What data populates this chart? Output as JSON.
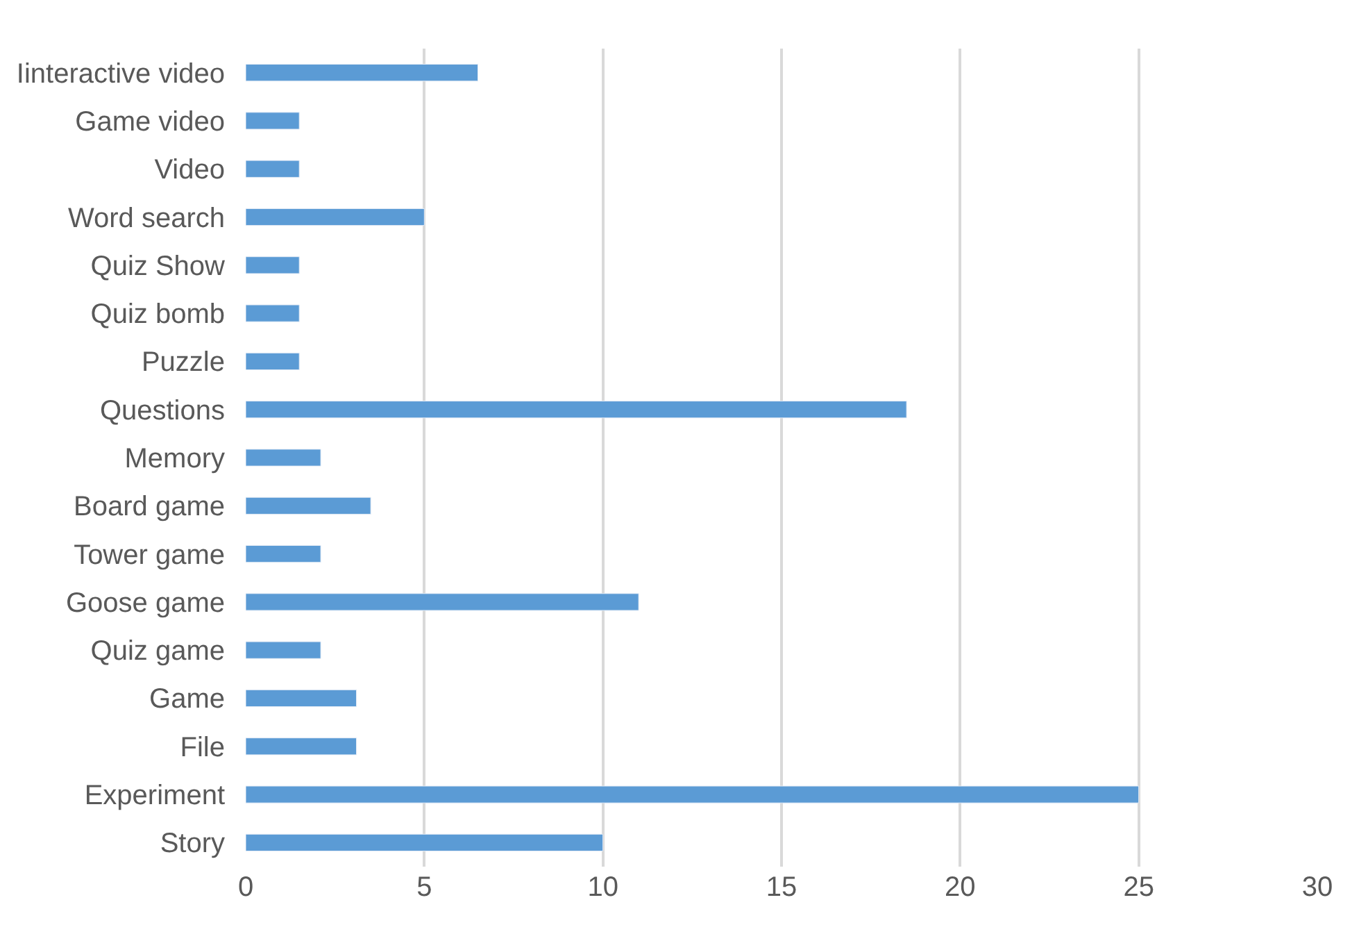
{
  "chart_data": {
    "type": "bar",
    "orientation": "horizontal",
    "categories": [
      "Iinteractive video",
      "Game video",
      "Video",
      "Word search",
      "Quiz Show",
      "Quiz bomb",
      "Puzzle",
      "Questions",
      "Memory",
      "Board game",
      "Tower game",
      "Goose game",
      "Quiz game",
      "Game",
      "File",
      "Experiment",
      "Story"
    ],
    "values": [
      6.5,
      1.5,
      1.5,
      5,
      1.5,
      1.5,
      1.5,
      18.5,
      2.1,
      3.5,
      2.1,
      11,
      2.1,
      3.1,
      3.1,
      25,
      10
    ],
    "color": "#5b9bd5",
    "xlim": [
      0,
      30
    ],
    "xticks": [
      0,
      5,
      10,
      15,
      20,
      25,
      30
    ],
    "grid": "x"
  }
}
